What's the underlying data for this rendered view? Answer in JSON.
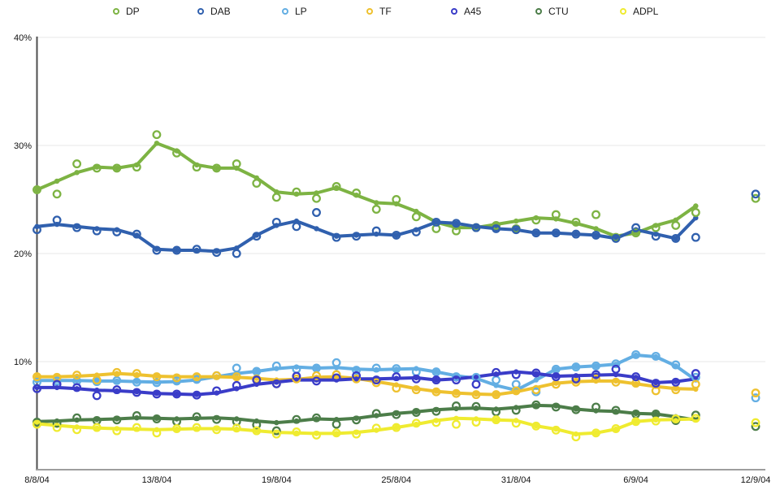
{
  "page": {
    "background": "#ffffff"
  },
  "legend": {
    "items": [
      {
        "label": "DP",
        "color": "#7db343"
      },
      {
        "label": "DAB",
        "color": "#3060ae"
      },
      {
        "label": "LP",
        "color": "#63aee3"
      },
      {
        "label": "TF",
        "color": "#eec12f"
      },
      {
        "label": "A45",
        "color": "#3a3cc8"
      },
      {
        "label": "CTU",
        "color": "#4c7d49"
      },
      {
        "label": "ADPL",
        "color": "#efeb30"
      }
    ]
  },
  "chart_data": {
    "type": "line",
    "title": "",
    "xlabel": "",
    "ylabel": "",
    "grid": true,
    "legend_position": "top",
    "y_axis": {
      "min": 0,
      "max": 40,
      "ticks": [
        10,
        20,
        30,
        40
      ],
      "tick_labels": [
        "10%",
        "20%",
        "30%",
        "40%"
      ],
      "unit": "%"
    },
    "x_axis": {
      "total_slots": 37,
      "labels": [
        "8/8/04",
        "13/8/04",
        "19/8/04",
        "25/8/04",
        "31/8/04",
        "6/9/04",
        "12/9/04"
      ],
      "label_slots": [
        0,
        6,
        12,
        18,
        24,
        30,
        36
      ]
    },
    "series": [
      {
        "name": "DP",
        "color": "#7db343",
        "points": [
          25.9,
          25.5,
          28.3,
          27.9,
          27.9,
          28.0,
          31.0,
          29.3,
          28.0,
          27.9,
          28.3,
          26.5,
          25.2,
          25.7,
          25.1,
          26.2,
          25.6,
          24.1,
          25.0,
          23.4,
          22.3,
          22.1,
          22.4,
          22.6,
          22.3,
          23.1,
          23.6,
          22.9,
          23.6,
          21.5,
          21.9,
          22.4,
          22.6,
          23.8,
          null,
          null,
          25.1
        ],
        "trend": [
          25.9,
          26.7,
          27.5,
          28.0,
          27.9,
          28.2,
          30.2,
          29.5,
          28.2,
          27.9,
          27.9,
          27.0,
          25.7,
          25.5,
          25.6,
          26.1,
          25.4,
          24.7,
          24.6,
          23.9,
          22.9,
          22.4,
          22.4,
          22.7,
          23.0,
          23.3,
          23.2,
          22.8,
          22.3,
          21.6,
          21.9,
          22.6,
          23.1,
          24.4
        ]
      },
      {
        "name": "DAB",
        "color": "#3060ae",
        "points": [
          22.2,
          23.1,
          22.4,
          22.1,
          22.0,
          21.8,
          20.3,
          20.3,
          20.4,
          20.1,
          20.0,
          21.6,
          22.9,
          22.5,
          23.8,
          21.5,
          21.6,
          22.1,
          21.7,
          22.0,
          22.9,
          22.8,
          22.4,
          22.3,
          22.2,
          21.9,
          21.9,
          21.8,
          21.7,
          21.4,
          22.4,
          21.6,
          21.4,
          21.5,
          null,
          null,
          25.5
        ],
        "trend": [
          22.5,
          22.7,
          22.5,
          22.3,
          22.2,
          21.7,
          20.4,
          20.3,
          20.3,
          20.2,
          20.5,
          21.7,
          22.6,
          23.0,
          22.3,
          21.6,
          21.7,
          21.8,
          21.7,
          22.2,
          22.9,
          22.8,
          22.5,
          22.3,
          22.2,
          21.9,
          21.9,
          21.8,
          21.7,
          21.4,
          22.2,
          21.8,
          21.4,
          23.3
        ]
      },
      {
        "name": "LP",
        "color": "#63aee3",
        "points": [
          8.1,
          8.2,
          8.2,
          8.15,
          8.25,
          8.1,
          8.05,
          8.2,
          8.35,
          8.7,
          9.4,
          9.1,
          9.6,
          9.3,
          9.4,
          9.9,
          9.2,
          9.4,
          9.35,
          9.05,
          9.05,
          8.6,
          8.55,
          8.3,
          7.9,
          7.2,
          9.3,
          9.5,
          9.6,
          9.8,
          10.65,
          10.5,
          9.7,
          8.55,
          null,
          null,
          6.65
        ],
        "trend": [
          8.25,
          8.25,
          8.25,
          8.2,
          8.2,
          8.15,
          8.1,
          8.15,
          8.3,
          8.6,
          8.9,
          9.1,
          9.35,
          9.5,
          9.4,
          9.45,
          9.3,
          9.25,
          9.3,
          9.35,
          9.05,
          8.7,
          8.45,
          7.8,
          7.35,
          8.3,
          9.3,
          9.5,
          9.6,
          9.75,
          10.6,
          10.45,
          9.6,
          8.3
        ]
      },
      {
        "name": "TF",
        "color": "#eec12f",
        "points": [
          8.6,
          8.55,
          8.75,
          8.3,
          9.0,
          8.9,
          8.6,
          8.5,
          8.6,
          8.7,
          8.6,
          8.4,
          7.95,
          8.4,
          8.7,
          8.8,
          8.4,
          8.05,
          7.55,
          7.4,
          7.2,
          7.05,
          6.95,
          6.95,
          7.3,
          7.4,
          7.9,
          8.1,
          8.4,
          8.1,
          8.0,
          7.3,
          7.4,
          7.9,
          null,
          null,
          7.1
        ],
        "trend": [
          8.6,
          8.6,
          8.65,
          8.75,
          8.9,
          8.8,
          8.65,
          8.6,
          8.6,
          8.6,
          8.55,
          8.45,
          8.3,
          8.35,
          8.55,
          8.6,
          8.45,
          8.15,
          7.85,
          7.5,
          7.25,
          7.1,
          7.0,
          6.95,
          7.2,
          7.6,
          8.0,
          8.15,
          8.2,
          8.2,
          7.95,
          7.7,
          7.5,
          7.45
        ]
      },
      {
        "name": "A45",
        "color": "#3a3cc8",
        "points": [
          7.5,
          7.9,
          7.6,
          6.85,
          7.4,
          7.15,
          7.0,
          7.0,
          6.9,
          7.3,
          7.8,
          8.3,
          7.95,
          8.65,
          8.2,
          8.5,
          8.7,
          8.3,
          8.6,
          8.4,
          8.3,
          8.3,
          7.9,
          9.0,
          8.8,
          8.95,
          8.6,
          8.4,
          8.8,
          9.3,
          8.6,
          8.0,
          8.1,
          8.9,
          null,
          null,
          null
        ],
        "trend": [
          7.6,
          7.6,
          7.5,
          7.35,
          7.3,
          7.2,
          7.05,
          7.0,
          6.95,
          7.1,
          7.5,
          7.9,
          8.1,
          8.3,
          8.3,
          8.3,
          8.4,
          8.4,
          8.45,
          8.5,
          8.3,
          8.4,
          8.6,
          8.85,
          9.05,
          8.9,
          8.65,
          8.7,
          8.75,
          8.8,
          8.55,
          8.05,
          8.15,
          8.4
        ]
      },
      {
        "name": "CTU",
        "color": "#4c7d49",
        "points": [
          4.4,
          4.3,
          4.8,
          4.55,
          4.6,
          5.0,
          4.7,
          4.45,
          4.9,
          4.65,
          4.45,
          4.15,
          3.6,
          4.65,
          4.8,
          4.2,
          4.6,
          5.2,
          5.1,
          5.3,
          5.4,
          5.9,
          5.85,
          5.35,
          5.5,
          6.0,
          5.8,
          5.55,
          5.8,
          5.5,
          5.15,
          5.15,
          4.55,
          5.05,
          null,
          null,
          4.0
        ],
        "trend": [
          4.45,
          4.5,
          4.6,
          4.65,
          4.7,
          4.8,
          4.75,
          4.7,
          4.75,
          4.8,
          4.7,
          4.5,
          4.35,
          4.5,
          4.7,
          4.65,
          4.75,
          5.0,
          5.2,
          5.35,
          5.55,
          5.65,
          5.7,
          5.6,
          5.75,
          5.95,
          5.9,
          5.6,
          5.45,
          5.4,
          5.2,
          5.15,
          4.9,
          4.6
        ]
      },
      {
        "name": "ADPL",
        "color": "#efeb30",
        "points": [
          4.2,
          3.9,
          3.7,
          3.9,
          3.6,
          3.9,
          3.4,
          3.8,
          3.9,
          3.7,
          3.85,
          3.6,
          3.3,
          3.5,
          3.2,
          3.4,
          3.3,
          3.85,
          3.9,
          4.3,
          4.37,
          4.2,
          4.4,
          4.62,
          4.3,
          4.04,
          3.66,
          3.03,
          3.4,
          3.8,
          4.45,
          4.5,
          4.7,
          4.75,
          null,
          null,
          4.35
        ],
        "trend": [
          4.25,
          4.1,
          3.95,
          3.85,
          3.8,
          3.75,
          3.7,
          3.75,
          3.8,
          3.8,
          3.75,
          3.6,
          3.45,
          3.4,
          3.35,
          3.35,
          3.45,
          3.65,
          3.9,
          4.2,
          4.55,
          4.75,
          4.7,
          4.6,
          4.55,
          4.05,
          3.75,
          3.3,
          3.4,
          3.75,
          4.45,
          4.6,
          4.65,
          4.7
        ]
      }
    ]
  },
  "style": {
    "gridline_color": "#e7e7e7",
    "y_axis_color": "#4d4d4d",
    "x_axis_color": "#9e9e9e",
    "label_color": "#111111"
  }
}
